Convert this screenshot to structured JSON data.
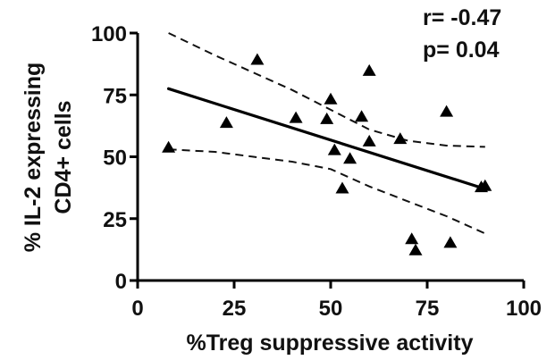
{
  "chart_data": {
    "type": "scatter",
    "title": "",
    "xlabel": "%Treg suppressive activity",
    "ylabel_lines": [
      "% IL-2 expressing",
      "CD4+ cells"
    ],
    "xlim": [
      0,
      100
    ],
    "ylim": [
      0,
      100
    ],
    "xticks": [
      0,
      25,
      50,
      75,
      100
    ],
    "yticks": [
      0,
      25,
      50,
      75,
      100
    ],
    "xtick_labels": [
      "0",
      "25",
      "50",
      "75",
      "100"
    ],
    "ytick_labels": [
      "0",
      "25",
      "50",
      "75",
      "100"
    ],
    "grid": false,
    "marker": "triangle",
    "marker_color": "#000000",
    "points": [
      {
        "x": 8,
        "y": 53.5
      },
      {
        "x": 23,
        "y": 63.5
      },
      {
        "x": 31,
        "y": 89
      },
      {
        "x": 41,
        "y": 65.5
      },
      {
        "x": 49,
        "y": 65
      },
      {
        "x": 50,
        "y": 73
      },
      {
        "x": 51,
        "y": 52.5
      },
      {
        "x": 53,
        "y": 37
      },
      {
        "x": 55,
        "y": 49
      },
      {
        "x": 58,
        "y": 66
      },
      {
        "x": 60,
        "y": 56
      },
      {
        "x": 60,
        "y": 84.5
      },
      {
        "x": 68,
        "y": 57
      },
      {
        "x": 71,
        "y": 16.5
      },
      {
        "x": 72,
        "y": 12
      },
      {
        "x": 80,
        "y": 68
      },
      {
        "x": 81,
        "y": 15
      },
      {
        "x": 89,
        "y": 37.5
      },
      {
        "x": 90,
        "y": 38
      }
    ],
    "regression": {
      "x": [
        8,
        90
      ],
      "y": [
        77.5,
        37
      ]
    },
    "confidence_band": {
      "upper": {
        "x": [
          8,
          20,
          30,
          40,
          50,
          60,
          70,
          80,
          90
        ],
        "y": [
          100,
          91,
          84,
          77,
          69,
          61,
          56.5,
          54.5,
          54
        ]
      },
      "lower": {
        "x": [
          8,
          20,
          30,
          40,
          50,
          60,
          70,
          80,
          90
        ],
        "y": [
          53,
          52,
          50,
          48,
          45,
          38,
          32,
          26,
          19
        ]
      }
    },
    "annotations": [
      {
        "text": "r= -0.47"
      },
      {
        "text": "p= 0.04"
      }
    ]
  }
}
